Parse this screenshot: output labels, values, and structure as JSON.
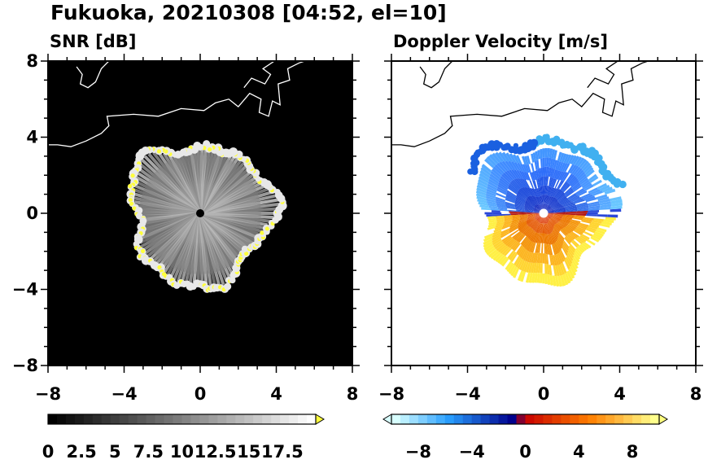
{
  "title": "Fukuoka, 20210308 [04:52, el=10]",
  "chart_data": [
    {
      "type": "heatmap",
      "subtitle": "SNR [dB]",
      "xlim": [
        -8,
        8
      ],
      "ylim": [
        -8,
        8
      ],
      "x_ticks": [
        "−8",
        "−4",
        "0",
        "4",
        "8"
      ],
      "y_ticks": [
        "8",
        "4",
        "0",
        "−4",
        "−8"
      ],
      "background": "#000000",
      "colorbar": {
        "range": [
          0,
          20
        ],
        "labels": [
          "0",
          "2.5",
          "5",
          "7.5",
          "10",
          "12.5",
          "15",
          "17.5"
        ],
        "colors": [
          "#000000",
          "#ffffff",
          "#ffff3c"
        ]
      }
    },
    {
      "type": "heatmap",
      "subtitle": "Doppler Velocity [m/s]",
      "xlim": [
        -8,
        8
      ],
      "ylim": [
        -8,
        8
      ],
      "x_ticks": [
        "−8",
        "−4",
        "0",
        "4",
        "8"
      ],
      "y_ticks": [
        "8",
        "4",
        "0",
        "−4",
        "−8"
      ],
      "background": "#ffffff",
      "colorbar": {
        "range": [
          -10,
          10
        ],
        "labels": [
          "−8",
          "−4",
          "0",
          "4",
          "8"
        ],
        "colors": [
          "#d8ffff",
          "#2aa0ff",
          "#0000a0",
          "#c80000",
          "#ff7f00",
          "#ffff80"
        ]
      }
    }
  ]
}
